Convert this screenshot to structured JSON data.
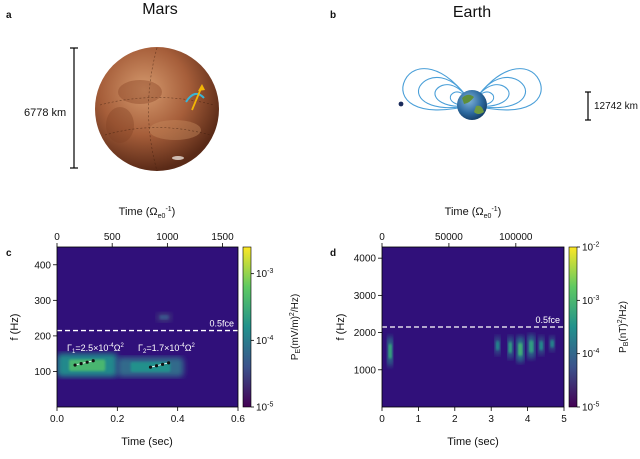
{
  "panels": {
    "a": {
      "letter": "a",
      "title": "Mars",
      "scale_label": "6778 km"
    },
    "b": {
      "letter": "b",
      "title": "Earth",
      "scale_label": "12742 km"
    },
    "c": {
      "letter": "c"
    },
    "d": {
      "letter": "d"
    }
  },
  "chart_data": [
    {
      "panel": "c",
      "type": "heatmap",
      "xlabel": "Time (sec)",
      "ylabel": "f (Hz)",
      "top_axis_label": "Time (Ω_e0^-1)",
      "xlim": [
        0,
        0.6
      ],
      "ylim": [
        0,
        450
      ],
      "xticks": [
        "0.0",
        "0.2",
        "0.4",
        "0.6"
      ],
      "yticks": [
        "100",
        "200",
        "300",
        "400"
      ],
      "top_ticks": [
        "0",
        "500",
        "1000",
        "1500"
      ],
      "top_tick_values": [
        0,
        500,
        1000,
        1500
      ],
      "top_axis_max": 1640,
      "colorbar": {
        "label": "P_E (mV/m)^2/Hz",
        "ticks": [
          "10^-3",
          "10^-4",
          "10^-5"
        ],
        "log_min": -5,
        "log_max": -2.6
      },
      "threshold": {
        "label": "0.5fce",
        "y": 215
      },
      "annotations": [
        {
          "text": "Γ1=2.5×10^-4 Ω_e0^2",
          "x": 0.02,
          "y": 155
        },
        {
          "text": "Γ2=1.7×10^-4 Ω_e0^2",
          "x": 0.27,
          "y": 155
        }
      ],
      "features": [
        {
          "t0": 0.0,
          "t1": 0.2,
          "f0": 85,
          "f1": 150,
          "level": -3.4
        },
        {
          "t0": 0.2,
          "t1": 0.42,
          "f0": 85,
          "f1": 140,
          "level": -3.8
        },
        {
          "t0": 0.33,
          "t1": 0.38,
          "f0": 240,
          "f1": 265,
          "level": -4.4
        }
      ],
      "fitted_points": [
        {
          "x": 0.06,
          "y": 118
        },
        {
          "x": 0.08,
          "y": 122
        },
        {
          "x": 0.1,
          "y": 126
        },
        {
          "x": 0.12,
          "y": 130
        },
        {
          "x": 0.31,
          "y": 112
        },
        {
          "x": 0.33,
          "y": 116
        },
        {
          "x": 0.35,
          "y": 120
        },
        {
          "x": 0.37,
          "y": 124
        }
      ]
    },
    {
      "panel": "d",
      "type": "heatmap",
      "xlabel": "Time (sec)",
      "ylabel": "f (Hz)",
      "top_axis_label": "Time (Ω_e0^-1)",
      "xlim": [
        0,
        5
      ],
      "ylim": [
        0,
        4300
      ],
      "xticks": [
        "0",
        "1",
        "2",
        "3",
        "4",
        "5"
      ],
      "yticks": [
        "1000",
        "2000",
        "3000",
        "4000"
      ],
      "top_ticks": [
        "0",
        "50000",
        "100000"
      ],
      "top_tick_values": [
        0,
        50000,
        100000
      ],
      "top_axis_max": 136000,
      "colorbar": {
        "label": "P_B (nT)^2/Hz",
        "ticks": [
          "10^-2",
          "10^-3",
          "10^-4",
          "10^-5"
        ],
        "log_min": -5,
        "log_max": -2
      },
      "threshold": {
        "label": "0.5fce",
        "y": 2150
      },
      "features": [
        {
          "t0": 0.15,
          "t1": 0.3,
          "f0": 1100,
          "f1": 1900,
          "level": -3.2
        },
        {
          "t0": 3.1,
          "t1": 3.25,
          "f0": 1400,
          "f1": 1900,
          "level": -3.6
        },
        {
          "t0": 3.45,
          "t1": 3.6,
          "f0": 1300,
          "f1": 1900,
          "level": -3.3
        },
        {
          "t0": 3.7,
          "t1": 3.9,
          "f0": 1200,
          "f1": 1900,
          "level": -3.1
        },
        {
          "t0": 4.0,
          "t1": 4.2,
          "f0": 1300,
          "f1": 1950,
          "level": -3.3
        },
        {
          "t0": 4.3,
          "t1": 4.45,
          "f0": 1400,
          "f1": 1900,
          "level": -3.5
        },
        {
          "t0": 4.6,
          "t1": 4.75,
          "f0": 1500,
          "f1": 1900,
          "level": -3.6
        }
      ]
    }
  ]
}
